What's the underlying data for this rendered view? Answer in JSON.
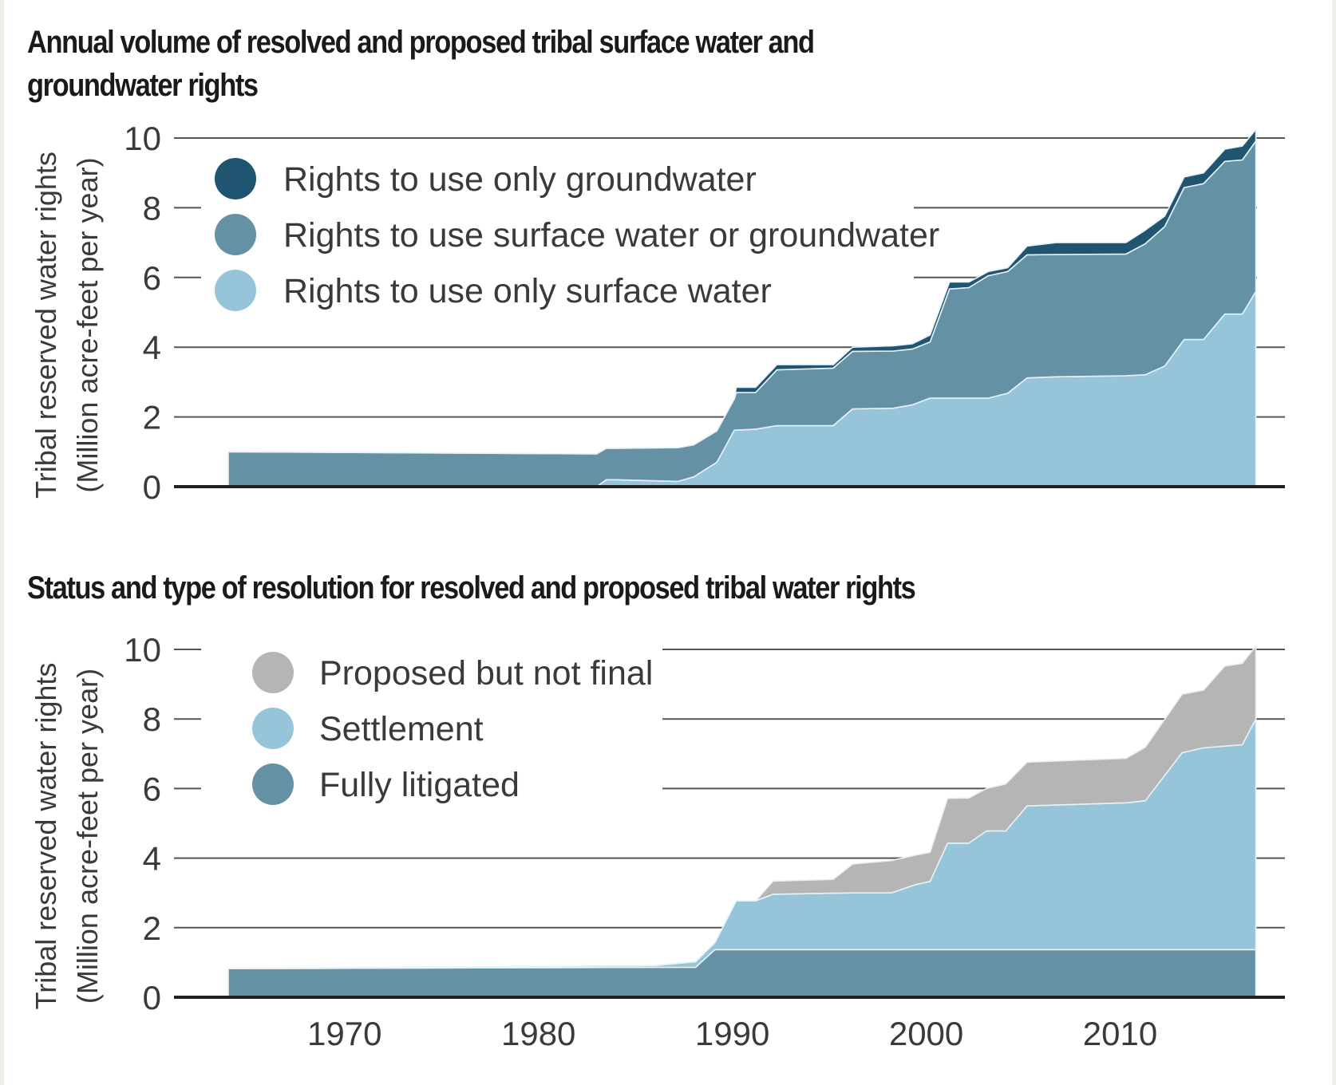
{
  "chart_data": [
    {
      "type": "area",
      "stacked": true,
      "title": "Annual volume of resolved and proposed tribal surface water and groundwater rights",
      "title_lines": [
        "Annual volume of resolved and proposed tribal surface water and",
        "groundwater rights"
      ],
      "xlabel": "",
      "ylabel": [
        "Tribal reserved water rights",
        "(Million acre-feet per year)"
      ],
      "ylim": [
        0,
        10
      ],
      "xlim": [
        1961.2,
        2018.5
      ],
      "yticks": [
        0,
        2,
        4,
        6,
        8,
        10
      ],
      "xticks": [],
      "grid": true,
      "legend_position": "top-left",
      "x": [
        1964,
        1983,
        1983.5,
        1984,
        1987.2,
        1988,
        1989.2,
        1990.1,
        1990.2,
        1991.2,
        1992.3,
        1995.2,
        1996.2,
        1998.3,
        1999.3,
        2000.2,
        2001.2,
        2002.2,
        2003.2,
        2004.2,
        2005.2,
        2006.7,
        2010.3,
        2011.3,
        2012.3,
        2013.3,
        2014.3,
        2015.4,
        2016.3,
        2017
      ],
      "series": [
        {
          "name": "Rights to use only surface water",
          "color": "#96c5da",
          "values": [
            0,
            0,
            0.2,
            0.2,
            0.15,
            0.28,
            0.7,
            1.62,
            1.62,
            1.65,
            1.75,
            1.75,
            2.23,
            2.25,
            2.35,
            2.54,
            2.54,
            2.54,
            2.54,
            2.68,
            3.12,
            3.15,
            3.18,
            3.21,
            3.46,
            4.22,
            4.22,
            4.95,
            4.95,
            5.6
          ]
        },
        {
          "name": "Rights to use surface water or groundwater",
          "color": "#6591a5",
          "values": [
            1.0,
            0.94,
            0.9,
            0.9,
            0.97,
            0.92,
            0.9,
            0.9,
            1.08,
            1.05,
            1.6,
            1.65,
            1.65,
            1.64,
            1.6,
            1.61,
            3.13,
            3.17,
            3.51,
            3.49,
            3.53,
            3.51,
            3.49,
            3.76,
            4.0,
            4.36,
            4.47,
            4.38,
            4.42,
            4.31
          ]
        },
        {
          "name": "Rights to use only groundwater",
          "color": "#1f5570",
          "values": [
            0,
            0,
            0,
            0,
            0,
            0,
            0,
            0,
            0.15,
            0.15,
            0.15,
            0.1,
            0.12,
            0.15,
            0.15,
            0.2,
            0.2,
            0.16,
            0.12,
            0.11,
            0.25,
            0.34,
            0.33,
            0.39,
            0.3,
            0.3,
            0.31,
            0.35,
            0.4,
            0.34
          ]
        }
      ]
    },
    {
      "type": "area",
      "stacked": true,
      "title": "Status and type of resolution for resolved and proposed tribal water rights",
      "title_lines": [
        "Status and type of resolution for resolved and proposed tribal water rights"
      ],
      "xlabel": "",
      "ylabel": [
        "Tribal reserved water rights",
        "(Million acre-feet per year)"
      ],
      "ylim": [
        0,
        10
      ],
      "xlim": [
        1961.2,
        2018.5
      ],
      "yticks": [
        0,
        2,
        4,
        6,
        8,
        10
      ],
      "xticks": [
        1970,
        1980,
        1990,
        2000,
        2010
      ],
      "grid": true,
      "legend_position": "top-left",
      "x": [
        1964,
        1986,
        1988.1,
        1989.1,
        1990.2,
        1991.2,
        1992.1,
        1995.2,
        1996.2,
        1998.2,
        1999.4,
        2000.2,
        2001.1,
        2002.2,
        2003.1,
        2004.1,
        2005.2,
        2010.3,
        2011.3,
        2013.2,
        2014.3,
        2015.4,
        2016.3,
        2017
      ],
      "series": [
        {
          "name": "Fully litigated",
          "color": "#6591a5",
          "values": [
            0.82,
            0.86,
            0.86,
            1.37,
            1.37,
            1.37,
            1.37,
            1.37,
            1.37,
            1.37,
            1.37,
            1.37,
            1.37,
            1.37,
            1.37,
            1.37,
            1.37,
            1.37,
            1.37,
            1.37,
            1.37,
            1.37,
            1.37,
            1.37
          ]
        },
        {
          "name": "Settlement",
          "color": "#96c5da",
          "values": [
            0,
            0.05,
            0.16,
            0.2,
            1.4,
            1.4,
            1.59,
            1.62,
            1.63,
            1.63,
            1.86,
            1.96,
            3.06,
            3.06,
            3.41,
            3.41,
            4.13,
            4.22,
            4.28,
            5.66,
            5.8,
            5.85,
            5.89,
            6.63
          ]
        },
        {
          "name": "Proposed but not final",
          "color": "#b5b5b5",
          "values": [
            0,
            0,
            0,
            0,
            0,
            0,
            0.38,
            0.4,
            0.83,
            0.93,
            0.85,
            0.84,
            1.29,
            1.3,
            1.22,
            1.35,
            1.26,
            1.28,
            1.54,
            1.68,
            1.66,
            2.3,
            2.34,
            2.1
          ]
        }
      ]
    }
  ],
  "legend_top": [
    {
      "label": "Rights to use only groundwater",
      "color": "#1f5570"
    },
    {
      "label": "Rights to use surface water or groundwater",
      "color": "#6591a5"
    },
    {
      "label": "Rights to use only surface water",
      "color": "#96c5da"
    }
  ],
  "legend_bottom": [
    {
      "label": "Proposed but not final",
      "color": "#b5b5b5"
    },
    {
      "label": "Settlement",
      "color": "#96c5da"
    },
    {
      "label": "Fully litigated",
      "color": "#6591a5"
    }
  ]
}
